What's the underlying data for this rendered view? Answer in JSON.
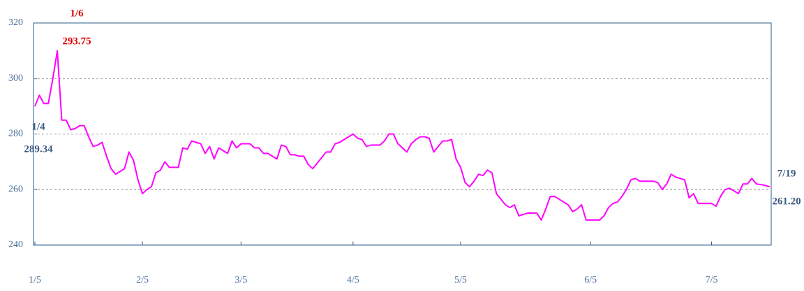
{
  "chart_data": {
    "type": "line",
    "categories": [
      "1/5",
      null,
      null,
      null,
      null,
      null,
      null,
      null,
      null,
      null,
      null,
      null,
      null,
      null,
      null,
      null,
      null,
      null,
      null,
      null,
      null,
      null,
      null,
      null,
      "2/5",
      null,
      null,
      null,
      null,
      null,
      null,
      null,
      null,
      null,
      null,
      null,
      null,
      null,
      null,
      null,
      null,
      null,
      null,
      null,
      null,
      null,
      "3/5",
      null,
      null,
      null,
      null,
      null,
      null,
      null,
      null,
      null,
      null,
      null,
      null,
      null,
      null,
      null,
      null,
      null,
      null,
      null,
      null,
      null,
      null,
      null,
      null,
      "4/5",
      null,
      null,
      null,
      null,
      null,
      null,
      null,
      null,
      null,
      null,
      null,
      null,
      null,
      null,
      null,
      null,
      null,
      null,
      null,
      null,
      null,
      null,
      null,
      "5/5",
      null,
      null,
      null,
      null,
      null,
      null,
      null,
      null,
      null,
      null,
      null,
      null,
      null,
      null,
      null,
      null,
      null,
      null,
      null,
      null,
      null,
      null,
      null,
      null,
      null,
      null,
      null,
      null,
      "6/5",
      null,
      null,
      null,
      null,
      null,
      null,
      null,
      null,
      null,
      null,
      null,
      null,
      null,
      null,
      null,
      null,
      null,
      null,
      null,
      null,
      null,
      null,
      null,
      null,
      null,
      null,
      "7/5",
      null,
      null,
      null,
      null,
      null,
      null,
      null,
      null,
      null,
      null,
      null,
      null,
      null
    ],
    "series": [
      {
        "color": "#ff00ff",
        "values": [
          290,
          294,
          291,
          291,
          300,
          310,
          285,
          285,
          281.5,
          282,
          283,
          283,
          279,
          275.5,
          276,
          277,
          272,
          267.5,
          265.5,
          266.5,
          267.5,
          273.5,
          270.5,
          263.5,
          258.5,
          260,
          261,
          266,
          267,
          270,
          268,
          268,
          268,
          275,
          274.5,
          277.5,
          277,
          276.5,
          273,
          275.5,
          271,
          275,
          274,
          273,
          277.5,
          275,
          276.5,
          276.5,
          276.5,
          275,
          275,
          273,
          273,
          272,
          271,
          276,
          275.5,
          272.5,
          272.5,
          272,
          272,
          269,
          267.5,
          269.5,
          271.5,
          273.5,
          273.5,
          276.5,
          277,
          278,
          279,
          280,
          278.5,
          278,
          275.5,
          276,
          276,
          276,
          277.5,
          280,
          280,
          276.5,
          275,
          273.5,
          276.5,
          278,
          279,
          279,
          278.5,
          273.5,
          275.5,
          277.5,
          277.5,
          278,
          271,
          268,
          262.5,
          261,
          263,
          265.5,
          265,
          267,
          266,
          258.5,
          256.5,
          254.5,
          253.5,
          254.5,
          250.5,
          251,
          251.5,
          251.5,
          251.5,
          249,
          253,
          257.5,
          257.5,
          256.5,
          255.5,
          254.5,
          252,
          253,
          254.5,
          249,
          249,
          249,
          249,
          250.5,
          253.5,
          255,
          255.5,
          257.5,
          260,
          263.5,
          264,
          263,
          263,
          263,
          263,
          262.5,
          260,
          262,
          265.5,
          264.5,
          264,
          263.5,
          257,
          258.5,
          255,
          255,
          255,
          255,
          254,
          257.5,
          260,
          260.5,
          259.5,
          258.5,
          262,
          262,
          264,
          262,
          261.8,
          261.5,
          261
        ]
      }
    ],
    "ylim": [
      240,
      320
    ],
    "yticks": [
      240,
      260,
      280,
      300,
      320
    ],
    "grid": true,
    "axis_color": "#2b5d8a",
    "annotations": [
      {
        "date": "1/6",
        "value": "293.75",
        "color": "#e00000"
      },
      {
        "date": "1/4",
        "value": "289.34",
        "color": "#3a5a80"
      },
      {
        "date": "7/19",
        "value": "261.20",
        "color": "#3a5a80"
      }
    ]
  }
}
